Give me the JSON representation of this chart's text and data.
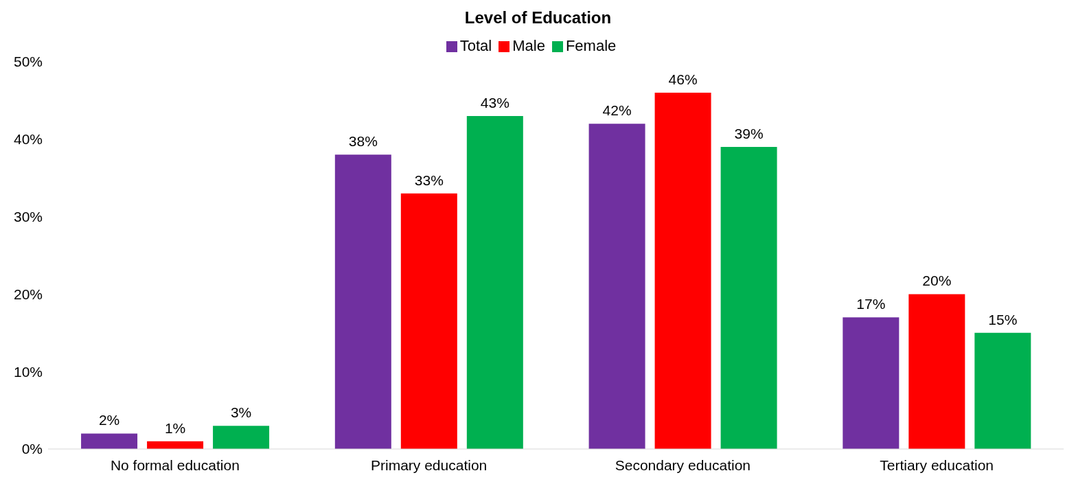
{
  "chart_data": {
    "type": "bar",
    "title": "Level of Education",
    "categories": [
      "No formal education",
      "Primary education",
      "Secondary education",
      "Tertiary education"
    ],
    "series": [
      {
        "name": "Total",
        "color": "#7030a0",
        "values": [
          2,
          38,
          42,
          17
        ],
        "value_labels": [
          "2%",
          "38%",
          "42%",
          "17%"
        ]
      },
      {
        "name": "Male",
        "color": "#ff0000",
        "values": [
          1,
          33,
          46,
          20
        ],
        "value_labels": [
          "1%",
          "33%",
          "46%",
          "20%"
        ]
      },
      {
        "name": "Female",
        "color": "#00b050",
        "values": [
          3,
          43,
          39,
          15
        ],
        "value_labels": [
          "3%",
          "43%",
          "39%",
          "15%"
        ]
      }
    ],
    "ylim": [
      0,
      50
    ],
    "yticks": [
      {
        "value": 0,
        "label": "0%"
      },
      {
        "value": 10,
        "label": "10%"
      },
      {
        "value": 20,
        "label": "20%"
      },
      {
        "value": 30,
        "label": "30%"
      },
      {
        "value": 40,
        "label": "40%"
      },
      {
        "value": 50,
        "label": "50%"
      }
    ],
    "grid": false,
    "legend": "top"
  }
}
